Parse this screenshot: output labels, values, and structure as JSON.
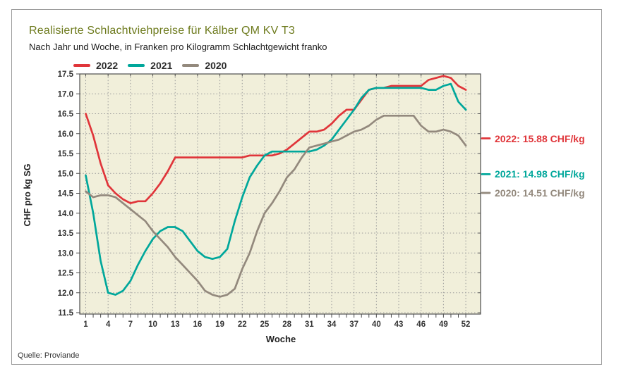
{
  "panel": {
    "title": "Realisierte Schlachtviehpreise für Kälber QM KV T3",
    "subtitle": "Nach Jahr und Woche, in Franken pro Kilogramm Schlachtgewicht franko",
    "source": "Quelle: Proviande"
  },
  "colors": {
    "title": "#6e7b1e",
    "red": "#e0353a",
    "teal": "#00a79b",
    "gray": "#93897d",
    "plot_bg": "#f1efda",
    "grid": "#9a9a9a",
    "axis": "#4d4d4d",
    "tick_text": "#333333",
    "panel_border": "#9c9c9c"
  },
  "legend": [
    {
      "label": "2022",
      "color": "#e0353a"
    },
    {
      "label": "2021",
      "color": "#00a79b"
    },
    {
      "label": "2020",
      "color": "#93897d"
    }
  ],
  "annotations": [
    {
      "text": "2022: 15.88 CHF/kg",
      "value": 15.88,
      "color": "#e0353a"
    },
    {
      "text": "2021: 14.98 CHF/kg",
      "value": 14.98,
      "color": "#00a79b"
    },
    {
      "text": "2020: 14.51 CHF/kg",
      "value": 14.51,
      "color": "#93897d"
    }
  ],
  "chart_data": {
    "type": "line",
    "title": "Realisierte Schlachtviehpreise für Kälber QM KV T3",
    "subtitle": "Nach Jahr und Woche, in Franken pro Kilogramm Schlachtgewicht franko",
    "xlabel": "Woche",
    "ylabel": "CHF pro kg SG",
    "xlim": [
      1,
      52
    ],
    "ylim": [
      11.5,
      17.5
    ],
    "y_tick_step": 0.5,
    "x_ticks_labeled": [
      1,
      4,
      7,
      10,
      13,
      16,
      19,
      22,
      25,
      28,
      31,
      34,
      37,
      40,
      43,
      46,
      49,
      52
    ],
    "grid": "dotted",
    "legend_position": "top-left",
    "x": [
      1,
      2,
      3,
      4,
      5,
      6,
      7,
      8,
      9,
      10,
      11,
      12,
      13,
      14,
      15,
      16,
      17,
      18,
      19,
      20,
      21,
      22,
      23,
      24,
      25,
      26,
      27,
      28,
      29,
      30,
      31,
      32,
      33,
      34,
      35,
      36,
      37,
      38,
      39,
      40,
      41,
      42,
      43,
      44,
      45,
      46,
      47,
      48,
      49,
      50,
      51,
      52
    ],
    "series": [
      {
        "name": "2022",
        "color": "#e0353a",
        "year_mean": 15.88,
        "values": [
          16.5,
          15.95,
          15.25,
          14.7,
          14.5,
          14.35,
          14.25,
          14.3,
          14.3,
          14.5,
          14.75,
          15.05,
          15.4,
          15.4,
          15.4,
          15.4,
          15.4,
          15.4,
          15.4,
          15.4,
          15.4,
          15.4,
          15.45,
          15.45,
          15.45,
          15.45,
          15.5,
          15.6,
          15.75,
          15.9,
          16.05,
          16.05,
          16.1,
          16.25,
          16.45,
          16.6,
          16.6,
          16.85,
          17.1,
          17.15,
          17.15,
          17.2,
          17.2,
          17.2,
          17.2,
          17.2,
          17.35,
          17.4,
          17.45,
          17.4,
          17.2,
          17.1
        ]
      },
      {
        "name": "2021",
        "color": "#00a79b",
        "year_mean": 14.98,
        "values": [
          14.95,
          14.0,
          12.8,
          12.0,
          11.95,
          12.05,
          12.3,
          12.7,
          13.05,
          13.35,
          13.55,
          13.65,
          13.65,
          13.55,
          13.3,
          13.05,
          12.9,
          12.85,
          12.9,
          13.1,
          13.8,
          14.4,
          14.9,
          15.2,
          15.45,
          15.55,
          15.55,
          15.55,
          15.55,
          15.55,
          15.55,
          15.6,
          15.7,
          15.85,
          16.1,
          16.35,
          16.6,
          16.9,
          17.1,
          17.15,
          17.15,
          17.15,
          17.15,
          17.15,
          17.15,
          17.15,
          17.1,
          17.1,
          17.2,
          17.25,
          16.8,
          16.6
        ]
      },
      {
        "name": "2020",
        "color": "#93897d",
        "year_mean": 14.51,
        "values": [
          14.55,
          14.4,
          14.45,
          14.45,
          14.4,
          14.25,
          14.1,
          13.95,
          13.8,
          13.55,
          13.35,
          13.15,
          12.9,
          12.7,
          12.5,
          12.3,
          12.05,
          11.95,
          11.9,
          11.95,
          12.1,
          12.6,
          13.0,
          13.55,
          14.0,
          14.25,
          14.55,
          14.9,
          15.1,
          15.4,
          15.65,
          15.7,
          15.75,
          15.8,
          15.85,
          15.95,
          16.05,
          16.1,
          16.2,
          16.35,
          16.45,
          16.45,
          16.45,
          16.45,
          16.45,
          16.2,
          16.05,
          16.05,
          16.1,
          16.05,
          15.95,
          15.7
        ]
      }
    ]
  }
}
